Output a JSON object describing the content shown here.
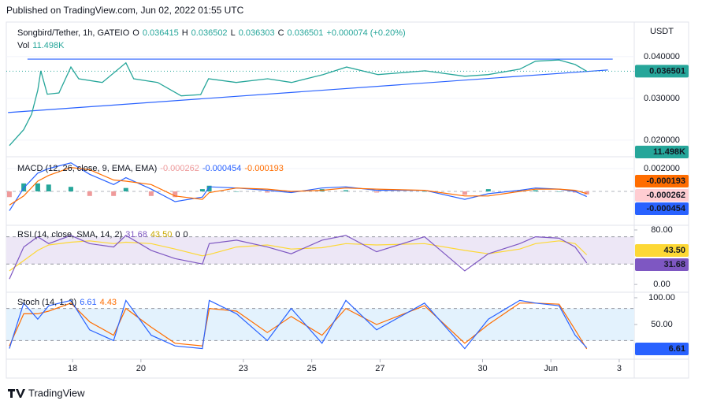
{
  "published": "Published on TradingView.com, Jun 02, 2022 01:55 UTC",
  "footer": "TradingView",
  "chart_data": [
    {
      "type": "line",
      "title": "Songbird/Tether, 1h, GATEIO",
      "ohlc": [
        {
          "label": "O",
          "value": 0.036415
        },
        {
          "label": "H",
          "value": 0.036502
        },
        {
          "label": "L",
          "value": 0.036303
        },
        {
          "label": "C",
          "value": 0.036501
        }
      ],
      "change_label": "+0.000074 (+0.20%)",
      "volume_title": "Vol",
      "volume_label": "11.498K",
      "y_axis_label": "USDT",
      "x": [
        16.15,
        16.57,
        16.8,
        16.98,
        17.07,
        17.26,
        17.6,
        17.95,
        18.18,
        18.87,
        19.56,
        19.79,
        20.49,
        21.18,
        21.75,
        21.98,
        22.79,
        23.71,
        24.41,
        25.33,
        26.02,
        26.94,
        28.32,
        29.48,
        30.17,
        31.09,
        31.55,
        32.24,
        32.71,
        33.05
      ],
      "values": [
        0.0187,
        0.0225,
        0.0262,
        0.0319,
        0.0366,
        0.031,
        0.0313,
        0.0375,
        0.0347,
        0.0338,
        0.0385,
        0.0347,
        0.0338,
        0.0306,
        0.0309,
        0.0347,
        0.0338,
        0.0347,
        0.0338,
        0.0357,
        0.0375,
        0.0357,
        0.0366,
        0.0353,
        0.0357,
        0.037,
        0.0389,
        0.0392,
        0.0381,
        0.036501
      ],
      "color": "#26a69a",
      "xlim": [
        16.06,
        34.44
      ],
      "xticks": [
        18,
        20,
        23,
        25,
        27,
        30,
        {
          "value": 32,
          "label": "Jun"
        },
        {
          "value": 34,
          "label": "3"
        }
      ],
      "ylim": [
        0.0162,
        0.0479
      ],
      "yticks": [
        {
          "value": 0.04,
          "label": "0.040000"
        },
        {
          "value": 0.03,
          "label": "0.030000"
        },
        {
          "value": 0.02,
          "label": "0.020000"
        }
      ],
      "trendlines": [
        {
          "x": [
            16.68,
            33.81
          ],
          "y": [
            0.0394,
            0.0394
          ]
        },
        {
          "x": [
            16.11,
            33.67
          ],
          "y": [
            0.0266,
            0.0368
          ]
        }
      ],
      "trendline_color": "#2962ff"
    },
    {
      "type": "macd",
      "title": "MACD (12, 26, close, 9, EMA, EMA)",
      "x": [
        16.15,
        16.57,
        16.98,
        17.3,
        17.95,
        18.5,
        19.2,
        19.56,
        20.3,
        21.0,
        21.8,
        22.0,
        22.8,
        23.7,
        24.4,
        25.3,
        26.0,
        26.9,
        28.3,
        29.48,
        30.17,
        31.09,
        31.55,
        32.24,
        32.71,
        33.05
      ],
      "histogram": {
        "color": "#ef9a9a",
        "values": [
          -0.0005,
          0.0007,
          0.0007,
          0.0006,
          0.0004,
          -0.0004,
          -0.0004,
          0.0003,
          -0.0004,
          -0.0005,
          0.0002,
          0.0005,
          0,
          -0.0001,
          -0.0001,
          0.0002,
          0.0001,
          -0.0001,
          0,
          -0.0003,
          0.0002,
          0.0001,
          0.0001,
          0,
          -0.0001,
          -0.000262
        ]
      },
      "macd": {
        "color": "#2962ff",
        "values": [
          -0.0017,
          0.0003,
          0.0016,
          0.002,
          0.0025,
          0.0015,
          0.0006,
          0.0012,
          0.0002,
          -0.0009,
          -0.0005,
          0.0004,
          0.0003,
          0.0001,
          -0.0001,
          0.0003,
          0.0004,
          0.0001,
          0.0001,
          -0.0007,
          -0.0002,
          0.0001,
          0.0003,
          0.0002,
          0,
          -0.000454
        ]
      },
      "signal": {
        "color": "#ff6d00",
        "values": [
          -0.0012,
          -0.0004,
          0.0009,
          0.0014,
          0.0021,
          0.0019,
          0.001,
          0.0009,
          0.0006,
          -0.0004,
          -0.0007,
          -0.0001,
          0.0003,
          0.0002,
          0,
          0.0001,
          0.0003,
          0.0002,
          0.0001,
          -0.0004,
          -0.0004,
          0,
          0.0002,
          0.0002,
          0.0001,
          -0.000193
        ]
      },
      "ylim": [
        -0.0029,
        0.00297
      ],
      "yticks": [
        {
          "value": 0.002,
          "label": "0.002000"
        }
      ],
      "zero_line": 0
    },
    {
      "type": "rsi",
      "title": "RSI (14, close, SMA, 14, 2)",
      "x": [
        16.15,
        16.57,
        16.98,
        17.3,
        17.95,
        18.5,
        19.2,
        19.56,
        20.3,
        21.0,
        21.8,
        22.0,
        22.8,
        23.7,
        24.4,
        25.3,
        26.0,
        26.9,
        28.3,
        29.48,
        30.17,
        31.09,
        31.55,
        32.24,
        32.71,
        33.05
      ],
      "rsi": {
        "color": "#7e57c2",
        "values": [
          8,
          55,
          70,
          60,
          72,
          60,
          55,
          72,
          50,
          38,
          30,
          60,
          65,
          55,
          45,
          65,
          72,
          48,
          70,
          20,
          45,
          60,
          70,
          68,
          55,
          31.68
        ]
      },
      "sma": {
        "color": "#fdd835",
        "label": "43.50",
        "values": [
          20,
          35,
          50,
          58,
          62,
          64,
          60,
          62,
          60,
          52,
          42,
          44,
          55,
          58,
          52,
          54,
          60,
          58,
          60,
          50,
          45,
          52,
          60,
          64,
          60,
          43.5
        ]
      },
      "extra_values": [
        0,
        0
      ],
      "band": [
        30,
        70
      ],
      "ylim": [
        -11.4,
        84.6
      ],
      "yticks": [
        {
          "value": 80,
          "label": "80.00"
        },
        {
          "value": 0,
          "label": "0.00"
        }
      ]
    },
    {
      "type": "stoch",
      "title": "Stoch (14, 1, 3)",
      "x": [
        16.15,
        16.57,
        16.98,
        17.3,
        17.95,
        18.5,
        19.2,
        19.56,
        20.3,
        21.0,
        21.8,
        22.0,
        22.8,
        23.7,
        24.4,
        25.3,
        26.0,
        26.9,
        28.3,
        29.48,
        30.17,
        31.09,
        31.55,
        32.24,
        32.71,
        33.05
      ],
      "k": {
        "color": "#2962ff",
        "values": [
          5,
          90,
          60,
          85,
          95,
          40,
          20,
          95,
          30,
          10,
          5,
          95,
          70,
          20,
          80,
          15,
          95,
          40,
          90,
          5,
          60,
          95,
          90,
          85,
          30,
          6.61
        ]
      },
      "d": {
        "color": "#ff6d00",
        "values": [
          10,
          70,
          70,
          75,
          90,
          55,
          30,
          80,
          45,
          15,
          10,
          80,
          75,
          35,
          65,
          30,
          80,
          50,
          85,
          15,
          50,
          90,
          90,
          88,
          40,
          4.43
        ]
      },
      "band": [
        20,
        80
      ],
      "ylim": [
        -13.2,
        108.8
      ],
      "yticks": [
        {
          "value": 100,
          "label": "100.00"
        },
        {
          "value": 50,
          "label": "50.00"
        }
      ]
    }
  ]
}
